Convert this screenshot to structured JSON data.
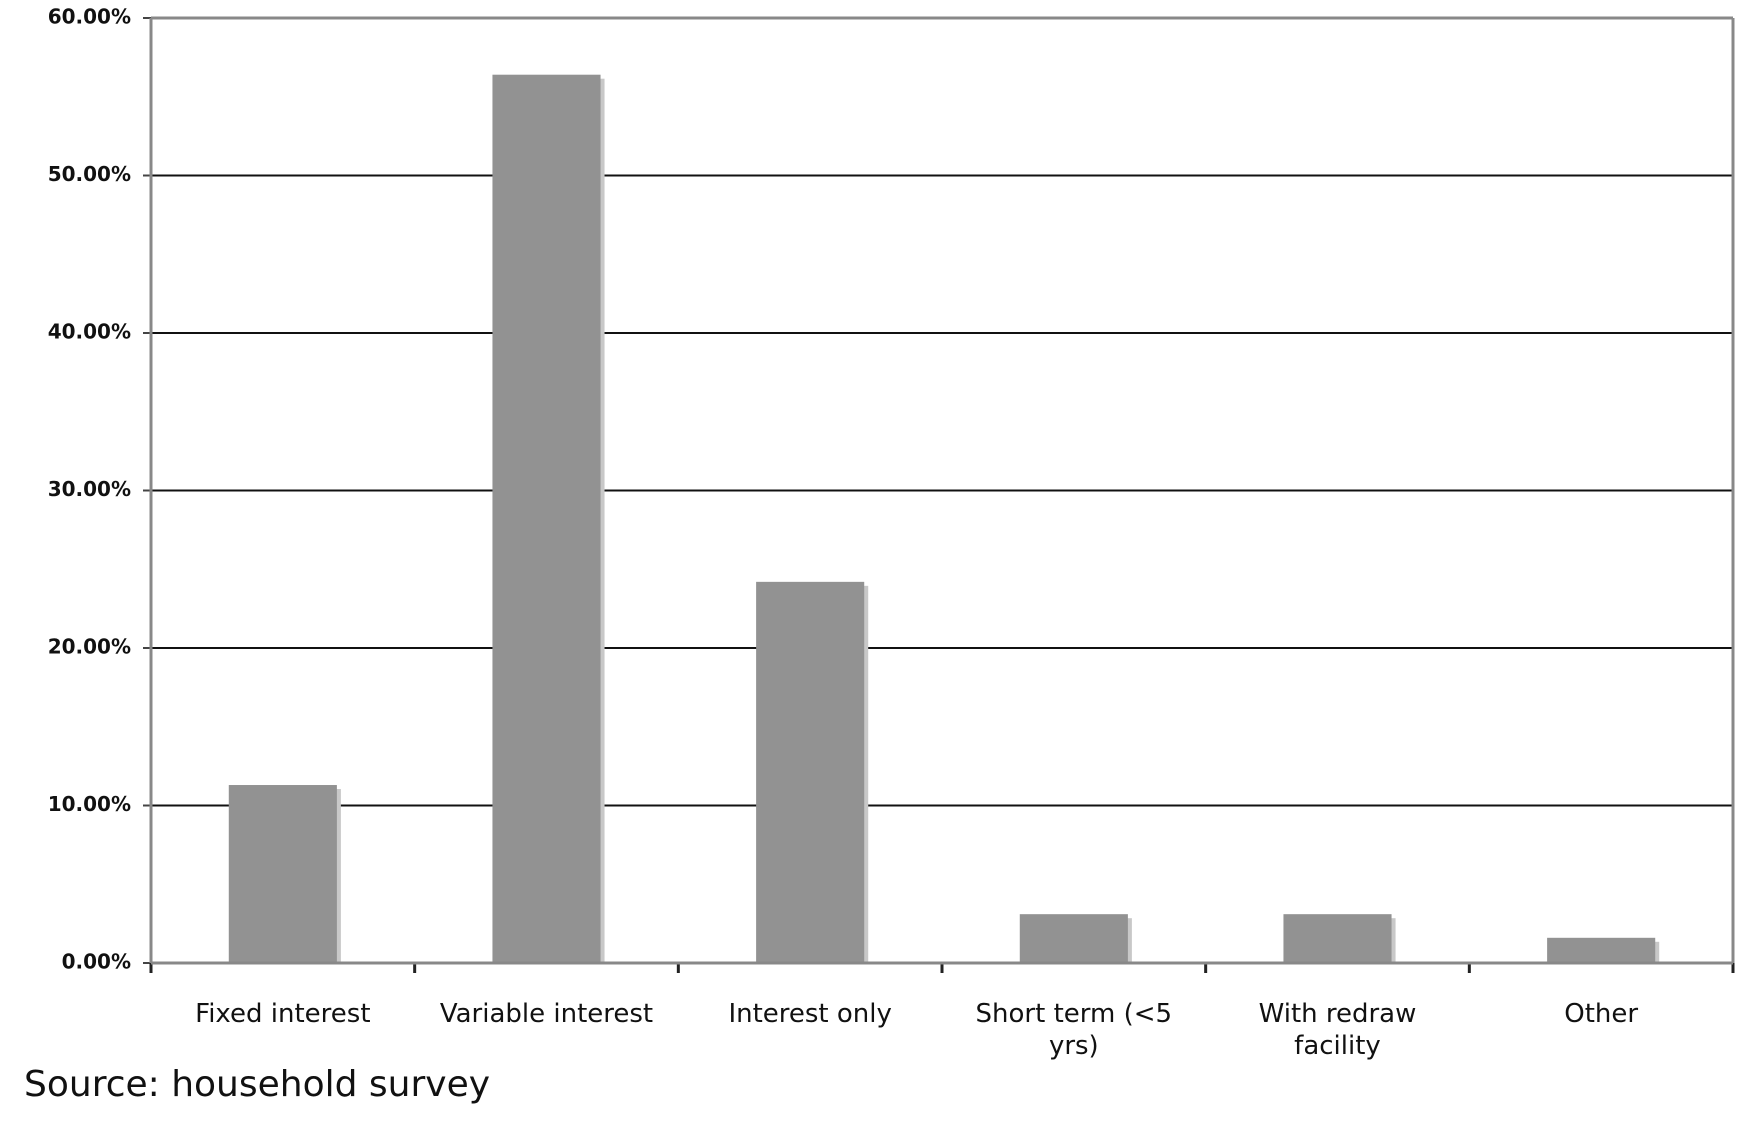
{
  "chart_data": {
    "type": "bar",
    "categories": [
      "Fixed interest",
      "Variable interest",
      "Interest only",
      "Short term (<5 yrs)",
      "With redraw facility",
      "Other"
    ],
    "values": [
      11.3,
      56.4,
      24.2,
      3.1,
      3.1,
      1.6
    ],
    "color": "#929292",
    "ylim": [
      0,
      60
    ],
    "yticks": [
      {
        "value": 0,
        "label": "0.00%"
      },
      {
        "value": 10,
        "label": "10.00%"
      },
      {
        "value": 20,
        "label": "20.00%"
      },
      {
        "value": 30,
        "label": "30.00%"
      },
      {
        "value": 40,
        "label": "40.00%"
      },
      {
        "value": 50,
        "label": "50.00%"
      },
      {
        "value": 60,
        "label": "60.00%"
      }
    ],
    "grid": true,
    "note": "Source: household survey"
  }
}
